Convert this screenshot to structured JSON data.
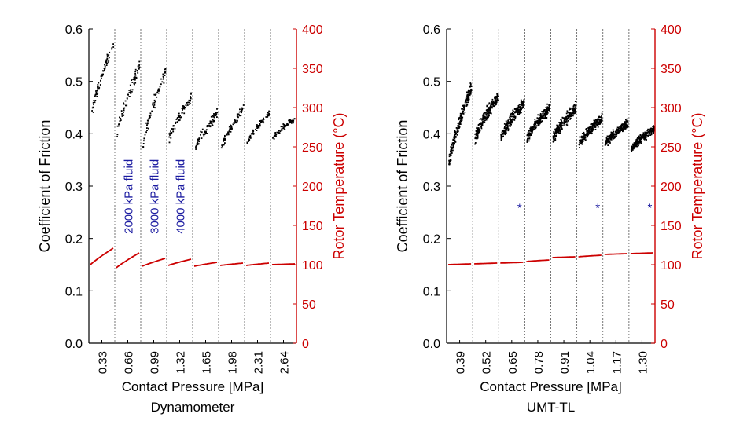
{
  "colors": {
    "friction": "#000000",
    "temperature": "#cc0000",
    "annotation": "#1a1aa0",
    "axis": "#000000",
    "divider": "#555555"
  },
  "chart_data": [
    {
      "id": "dyn",
      "type": "scatter",
      "subtitle": "Dynamometer",
      "xlabel": "Contact Pressure [MPa]",
      "ylabel": "Coefficient of Friction",
      "y2label": "Rotor Temperature (°C)",
      "ylim": [
        0,
        0.6
      ],
      "y2lim": [
        0,
        400
      ],
      "yticks": [
        "0.0",
        "0.1",
        "0.2",
        "0.3",
        "0.4",
        "0.5",
        "0.6"
      ],
      "y2ticks": [
        "0",
        "50",
        "100",
        "150",
        "200",
        "250",
        "300",
        "350",
        "400"
      ],
      "xticks": [
        "0.33",
        "0.66",
        "0.99",
        "1.32",
        "1.65",
        "1.98",
        "2.31",
        "2.64"
      ],
      "segments": [
        {
          "mu_start": 0.43,
          "mu_end": 0.575,
          "temp_start": 100,
          "temp_end": 121,
          "scatter": 0.015
        },
        {
          "mu_start": 0.4,
          "mu_end": 0.53,
          "temp_start": 96,
          "temp_end": 115,
          "scatter": 0.018
        },
        {
          "mu_start": 0.38,
          "mu_end": 0.52,
          "temp_start": 98,
          "temp_end": 108,
          "scatter": 0.018
        },
        {
          "mu_start": 0.39,
          "mu_end": 0.47,
          "temp_start": 99,
          "temp_end": 107,
          "scatter": 0.015
        },
        {
          "mu_start": 0.37,
          "mu_end": 0.44,
          "temp_start": 98,
          "temp_end": 103,
          "scatter": 0.014
        },
        {
          "mu_start": 0.37,
          "mu_end": 0.45,
          "temp_start": 99,
          "temp_end": 102,
          "scatter": 0.01
        },
        {
          "mu_start": 0.38,
          "mu_end": 0.44,
          "temp_start": 99,
          "temp_end": 102,
          "scatter": 0.008
        },
        {
          "mu_start": 0.39,
          "mu_end": 0.43,
          "temp_start": 100,
          "temp_end": 101,
          "scatter": 0.008
        }
      ],
      "annotations": [
        {
          "text": "2000 kPa fluid",
          "segment": 1,
          "mu": 0.28
        },
        {
          "text": "3000 kPa fluid",
          "segment": 2,
          "mu": 0.28
        },
        {
          "text": "4000 kPa fluid",
          "segment": 3,
          "mu": 0.28
        }
      ],
      "markers": []
    },
    {
      "id": "umt",
      "type": "scatter",
      "subtitle": "UMT-TL",
      "xlabel": "Contact Pressure [MPa]",
      "ylabel": "Coefficient of Friction",
      "y2label": "Rotor Temperature (°C)",
      "ylim": [
        0,
        0.6
      ],
      "y2lim": [
        0,
        400
      ],
      "yticks": [
        "0.0",
        "0.1",
        "0.2",
        "0.3",
        "0.4",
        "0.5",
        "0.6"
      ],
      "y2ticks": [
        "0",
        "50",
        "100",
        "150",
        "200",
        "250",
        "300",
        "350",
        "400"
      ],
      "xticks": [
        "0.39",
        "0.52",
        "0.65",
        "0.78",
        "0.91",
        "1.04",
        "1.17",
        "1.30"
      ],
      "segments": [
        {
          "mu_start": 0.34,
          "mu_end": 0.49,
          "temp_start": 100,
          "temp_end": 101,
          "scatter": 0.02
        },
        {
          "mu_start": 0.39,
          "mu_end": 0.47,
          "temp_start": 101,
          "temp_end": 102,
          "scatter": 0.018
        },
        {
          "mu_start": 0.39,
          "mu_end": 0.46,
          "temp_start": 102,
          "temp_end": 103,
          "scatter": 0.018
        },
        {
          "mu_start": 0.39,
          "mu_end": 0.45,
          "temp_start": 104,
          "temp_end": 106,
          "scatter": 0.016
        },
        {
          "mu_start": 0.39,
          "mu_end": 0.45,
          "temp_start": 109,
          "temp_end": 110,
          "scatter": 0.016
        },
        {
          "mu_start": 0.38,
          "mu_end": 0.43,
          "temp_start": 110,
          "temp_end": 112,
          "scatter": 0.014
        },
        {
          "mu_start": 0.38,
          "mu_end": 0.42,
          "temp_start": 113,
          "temp_end": 114,
          "scatter": 0.012
        },
        {
          "mu_start": 0.37,
          "mu_end": 0.41,
          "temp_start": 114,
          "temp_end": 115,
          "scatter": 0.012
        }
      ],
      "annotations": [],
      "markers": [
        {
          "text": "*",
          "segment": 2,
          "mu": 0.26
        },
        {
          "text": "*",
          "segment": 5,
          "mu": 0.26
        },
        {
          "text": "*",
          "segment": 7,
          "mu": 0.26
        }
      ]
    }
  ]
}
